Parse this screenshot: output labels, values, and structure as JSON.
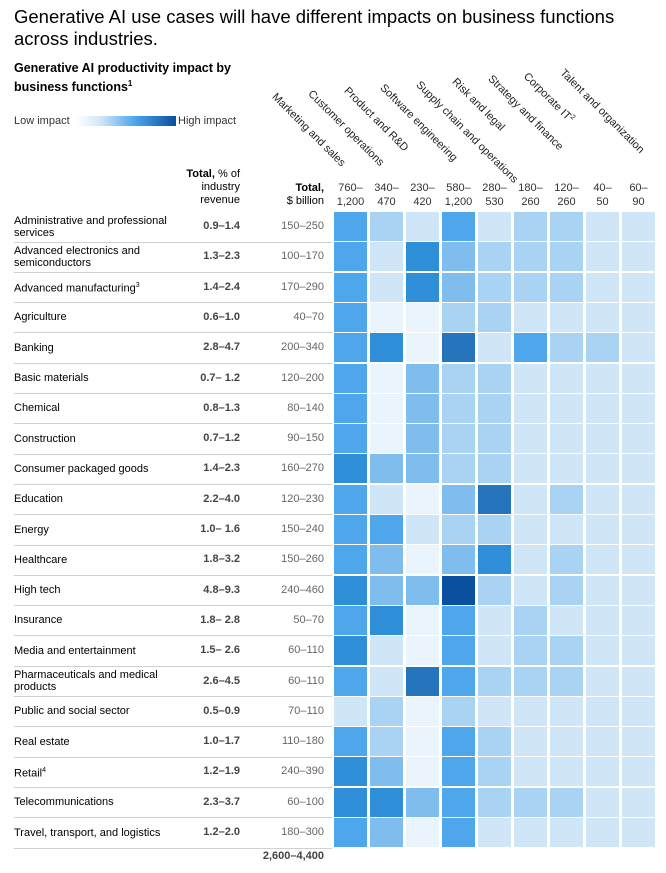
{
  "title": "Generative AI use cases will have different impacts on business functions across industries.",
  "subtitle": "Generative AI productivity impact by business functions",
  "subtitle_footnote": "1",
  "legend": {
    "low": "Low impact",
    "high": "High impact"
  },
  "header": {
    "total_pct_bold": "Total,",
    "total_pct_rest": "% of industry revenue",
    "total_usd_bold": "Total,",
    "total_usd_rest": "$ billion"
  },
  "colors": {
    "scale": [
      "#eaf4fc",
      "#cfe6f9",
      "#a9d3f3",
      "#7ebdee",
      "#4ea6eb",
      "#2f8ed8",
      "#2574bc",
      "#0b4fa0"
    ]
  },
  "chart_data": {
    "type": "heatmap",
    "title": "Generative AI productivity impact by business functions",
    "columns": [
      {
        "name": "Marketing and sales",
        "range_top": "760–",
        "range_bottom": "1,200"
      },
      {
        "name": "Customer operations",
        "range_top": "340–",
        "range_bottom": "470"
      },
      {
        "name": "Product and R&D",
        "range_top": "230–",
        "range_bottom": "420"
      },
      {
        "name": "Software engineering",
        "range_top": "580–",
        "range_bottom": "1,200"
      },
      {
        "name": "Supply chain and operations",
        "range_top": "280–",
        "range_bottom": "530"
      },
      {
        "name": "Risk and legal",
        "range_top": "180–",
        "range_bottom": "260"
      },
      {
        "name": "Strategy and finance",
        "range_top": "120–",
        "range_bottom": "260"
      },
      {
        "name": "Corporate IT",
        "sup": "2",
        "range_top": "40–",
        "range_bottom": "50"
      },
      {
        "name": "Talent and organization",
        "range_top": "60–",
        "range_bottom": "90"
      }
    ],
    "rows": [
      {
        "industry": "Administrative and professional services",
        "pct": "0.9–1.4",
        "usd": "150–250",
        "levels": [
          4,
          2,
          1,
          4,
          1,
          2,
          2,
          1,
          1
        ]
      },
      {
        "industry": "Advanced electronics and semiconductors",
        "pct": "1.3–2.3",
        "usd": "100–170",
        "levels": [
          4,
          1,
          5,
          3,
          2,
          2,
          2,
          1,
          1
        ]
      },
      {
        "industry": "Advanced manufacturing",
        "sup": "3",
        "pct": "1.4–2.4",
        "usd": "170–290",
        "levels": [
          4,
          1,
          5,
          3,
          2,
          2,
          2,
          1,
          1
        ]
      },
      {
        "industry": "Agriculture",
        "pct": "0.6–1.0",
        "usd": "40–70",
        "levels": [
          4,
          0,
          0,
          2,
          2,
          1,
          1,
          1,
          1
        ]
      },
      {
        "industry": "Banking",
        "pct": "2.8–4.7",
        "usd": "200–340",
        "levels": [
          4,
          5,
          0,
          6,
          1,
          4,
          2,
          2,
          1
        ]
      },
      {
        "industry": "Basic materials",
        "pct": "0.7– 1.2",
        "usd": "120–200",
        "levels": [
          4,
          0,
          3,
          2,
          2,
          1,
          1,
          1,
          1
        ]
      },
      {
        "industry": "Chemical",
        "pct": "0.8–1.3",
        "usd": "80–140",
        "levels": [
          4,
          0,
          3,
          2,
          2,
          1,
          1,
          1,
          1
        ]
      },
      {
        "industry": "Construction",
        "pct": "0.7–1.2",
        "usd": "90–150",
        "levels": [
          4,
          0,
          3,
          2,
          2,
          1,
          1,
          1,
          1
        ]
      },
      {
        "industry": "Consumer packaged goods",
        "pct": "1.4–2.3",
        "usd": "160–270",
        "levels": [
          5,
          3,
          3,
          2,
          2,
          1,
          1,
          1,
          1
        ]
      },
      {
        "industry": "Education",
        "pct": "2.2–4.0",
        "usd": "120–230",
        "levels": [
          4,
          1,
          0,
          3,
          6,
          1,
          2,
          1,
          1
        ]
      },
      {
        "industry": "Energy",
        "pct": "1.0– 1.6",
        "usd": "150–240",
        "levels": [
          4,
          4,
          1,
          2,
          2,
          1,
          1,
          1,
          1
        ]
      },
      {
        "industry": "Healthcare",
        "pct": "1.8–3.2",
        "usd": "150–260",
        "levels": [
          4,
          3,
          0,
          3,
          5,
          1,
          2,
          1,
          1
        ]
      },
      {
        "industry": "High tech",
        "pct": "4.8–9.3",
        "usd": "240–460",
        "levels": [
          5,
          3,
          3,
          7,
          2,
          1,
          2,
          1,
          1
        ]
      },
      {
        "industry": "Insurance",
        "pct": "1.8– 2.8",
        "usd": "50–70",
        "levels": [
          4,
          5,
          0,
          4,
          1,
          2,
          1,
          1,
          1
        ]
      },
      {
        "industry": "Media and entertainment",
        "pct": "1.5– 2.6",
        "usd": "60–110",
        "levels": [
          5,
          1,
          0,
          4,
          1,
          2,
          2,
          1,
          1
        ]
      },
      {
        "industry": "Pharmaceuticals and medical products",
        "pct": "2.6–4.5",
        "usd": "60–110",
        "levels": [
          4,
          1,
          6,
          4,
          2,
          2,
          2,
          1,
          1
        ]
      },
      {
        "industry": "Public and social sector",
        "pct": "0.5–0.9",
        "usd": "70–110",
        "levels": [
          1,
          2,
          0,
          2,
          1,
          1,
          1,
          1,
          1
        ]
      },
      {
        "industry": "Real estate",
        "pct": "1.0–1.7",
        "usd": "110–180",
        "levels": [
          4,
          2,
          0,
          4,
          2,
          1,
          1,
          1,
          1
        ]
      },
      {
        "industry": "Retail",
        "sup": "4",
        "pct": "1.2–1.9",
        "usd": "240–390",
        "levels": [
          5,
          3,
          0,
          4,
          2,
          1,
          1,
          1,
          1
        ]
      },
      {
        "industry": "Telecommunications",
        "pct": "2.3–3.7",
        "usd": "60–100",
        "levels": [
          5,
          5,
          3,
          4,
          2,
          2,
          2,
          1,
          1
        ]
      },
      {
        "industry": "Travel, transport, and logistics",
        "pct": "1.2–2.0",
        "usd": "180–300",
        "levels": [
          4,
          3,
          0,
          4,
          1,
          1,
          1,
          1,
          1
        ]
      }
    ],
    "grand_total_usd": "2,600–4,400"
  }
}
